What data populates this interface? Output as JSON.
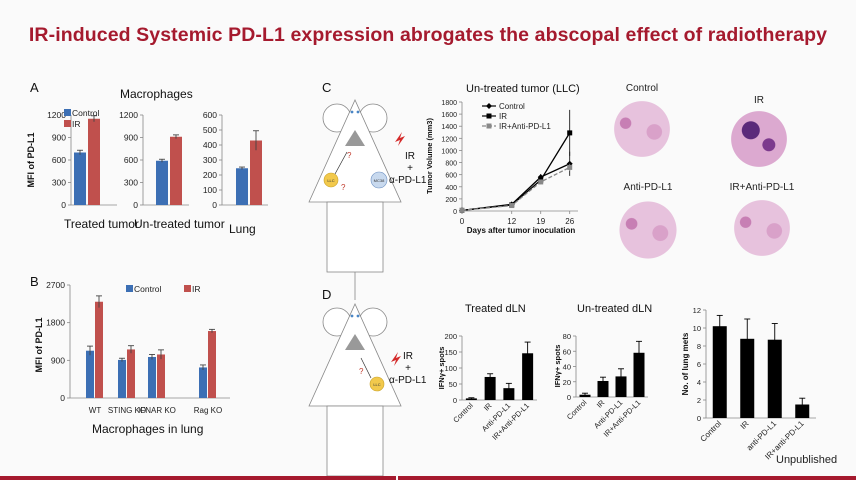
{
  "slide": {
    "title": "IR-induced Systemic PD-L1 expression abrogates the abscopal effect of radiotherapy",
    "unpublished": "Unpublished",
    "colors": {
      "title": "#a51a2e",
      "control": "#3c6fb4",
      "ir": "#c0504d",
      "bars_black": "#000000"
    }
  },
  "panelA": {
    "letter": "A",
    "title": "Macrophages",
    "ylabel": "MFI of PD-L1",
    "legend": [
      "Control",
      "IR"
    ]
  },
  "panelB": {
    "letter": "B",
    "ylabel": "MFI of PD-L1",
    "xlabel": "Macrophages in lung",
    "legend": [
      "Control",
      "IR"
    ]
  },
  "panelC": {
    "letter": "C",
    "treatment_line1": "IR",
    "treatment_line2": "+",
    "treatment_line3": "α-PD-L1",
    "cell_left": "LLC",
    "cell_right": "MC38",
    "histology": [
      "Control",
      "IR",
      "Anti-PD-L1",
      "IR+Anti-PD-L1"
    ]
  },
  "panelD": {
    "letter": "D",
    "treatment_line1": "IR",
    "treatment_line2": "+",
    "treatment_line3": "α-PD-L1",
    "cell": "LLC"
  },
  "chart_data": [
    {
      "id": "A-treated",
      "type": "bar",
      "categories": [
        "Treated tumor"
      ],
      "xlabel": "Treated tumor",
      "ylim": [
        0,
        1200
      ],
      "yticks": [
        0,
        300,
        600,
        900,
        1200
      ],
      "series": [
        {
          "name": "Control",
          "values": [
            700
          ]
        },
        {
          "name": "IR",
          "values": [
            1150
          ]
        }
      ],
      "errors": [
        [
          30
        ],
        [
          40
        ]
      ]
    },
    {
      "id": "A-untreated",
      "type": "bar",
      "categories": [
        "Un-treated tumor"
      ],
      "xlabel": "Un-treated tumor",
      "ylim": [
        0,
        1200
      ],
      "yticks": [
        0,
        300,
        600,
        900,
        1200
      ],
      "series": [
        {
          "name": "Control",
          "values": [
            590
          ]
        },
        {
          "name": "IR",
          "values": [
            910
          ]
        }
      ],
      "errors": [
        [
          20
        ],
        [
          25
        ]
      ]
    },
    {
      "id": "A-lung",
      "type": "bar",
      "categories": [
        "Lung"
      ],
      "xlabel": "Lung",
      "ylim": [
        0,
        600
      ],
      "yticks": [
        0,
        100,
        200,
        300,
        400,
        500,
        600
      ],
      "series": [
        {
          "name": "Control",
          "values": [
            245
          ]
        },
        {
          "name": "IR",
          "values": [
            430
          ]
        }
      ],
      "errors": [
        [
          8
        ],
        [
          65
        ]
      ]
    },
    {
      "id": "B",
      "type": "bar",
      "categories": [
        "WT",
        "STING KO",
        "IFNAR KO",
        "Rag KO"
      ],
      "ylim": [
        0,
        2700
      ],
      "yticks": [
        0,
        900,
        1800,
        2700
      ],
      "series": [
        {
          "name": "Control",
          "values": [
            1130,
            910,
            980,
            730
          ]
        },
        {
          "name": "IR",
          "values": [
            2300,
            1160,
            1040,
            1600
          ]
        }
      ],
      "errors": [
        [
          110,
          40,
          60,
          60
        ],
        [
          140,
          90,
          110,
          40
        ]
      ]
    },
    {
      "id": "C-growth",
      "type": "line",
      "title": "Un-treated tumor (LLC)",
      "xlabel": "Days after tumor inoculation",
      "ylabel": "Tumor Volume (mm3)",
      "x": [
        0,
        12,
        19,
        26
      ],
      "xticks": [
        0,
        12,
        19,
        26
      ],
      "ylim": [
        0,
        1800
      ],
      "yticks": [
        0,
        200,
        400,
        600,
        800,
        1000,
        1200,
        1400,
        1600,
        1800
      ],
      "series": [
        {
          "name": "Control",
          "values": [
            10,
            110,
            560,
            780
          ],
          "errors": [
            5,
            20,
            50,
            200
          ],
          "marker": "diamond",
          "dash": false
        },
        {
          "name": "IR",
          "values": [
            10,
            100,
            510,
            1290
          ],
          "errors": [
            5,
            20,
            50,
            380
          ],
          "marker": "square",
          "dash": false
        },
        {
          "name": "IR+Anti-PD-L1",
          "values": [
            10,
            90,
            480,
            720
          ],
          "errors": [
            5,
            20,
            40,
            60
          ],
          "marker": "square",
          "dash": true
        }
      ]
    },
    {
      "id": "D-treated",
      "type": "bar",
      "title": "Treated dLN",
      "ylabel": "IFNγ+ spots",
      "categories": [
        "Control",
        "IR",
        "Anti-PD-L1",
        "IR+Anti-PD-L1"
      ],
      "values": [
        5,
        72,
        37,
        146
      ],
      "errors": [
        2,
        10,
        15,
        35
      ],
      "ylim": [
        0,
        200
      ],
      "yticks": [
        0,
        50,
        100,
        150,
        200
      ]
    },
    {
      "id": "D-untreated",
      "type": "bar",
      "title": "Un-treated dLN",
      "ylabel": "IFNγ+ spots",
      "categories": [
        "Control",
        "IR",
        "Anti-PD-L1",
        "IR+Anti-PD-L1"
      ],
      "values": [
        3,
        21,
        27,
        58
      ],
      "errors": [
        2,
        5,
        10,
        15
      ],
      "ylim": [
        0,
        80
      ],
      "yticks": [
        0,
        20,
        40,
        60,
        80
      ]
    },
    {
      "id": "D-mets",
      "type": "bar",
      "ylabel": "No. of lung mets",
      "categories": [
        "Control",
        "IR",
        "anti-PD-L1",
        "IR+anti-PD-L1"
      ],
      "values": [
        10.2,
        8.8,
        8.7,
        1.5
      ],
      "errors": [
        1.2,
        2.2,
        1.8,
        0.7
      ],
      "ylim": [
        0,
        12
      ],
      "yticks": [
        0,
        2,
        4,
        6,
        8,
        10,
        12
      ]
    }
  ]
}
